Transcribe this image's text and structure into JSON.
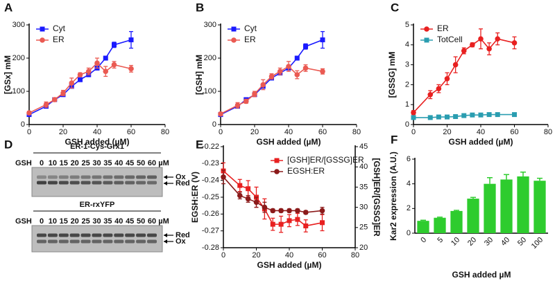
{
  "chart_data": [
    {
      "type": "line",
      "panel": "A",
      "x_label": "GSH added (µM)",
      "y_label": "[GSx] mM",
      "x": [
        0,
        10,
        15,
        20,
        25,
        30,
        35,
        40,
        45,
        50,
        60
      ],
      "xlim": [
        0,
        80
      ],
      "xticks": [
        0,
        20,
        40,
        60,
        80
      ],
      "ylim": [
        0,
        300
      ],
      "yticks": [
        0,
        100,
        200,
        300
      ],
      "legend": "upper left",
      "series": [
        {
          "name": "Cyt",
          "color": "#1a1aff",
          "marker": "square",
          "values": [
            30,
            55,
            75,
            90,
            115,
            135,
            150,
            170,
            200,
            240,
            255
          ],
          "errors": [
            3,
            4,
            3,
            4,
            5,
            5,
            5,
            5,
            6,
            8,
            25
          ]
        },
        {
          "name": "ER",
          "color": "#ea5a52",
          "marker": "circle",
          "values": [
            35,
            60,
            75,
            95,
            125,
            150,
            160,
            185,
            160,
            180,
            168
          ],
          "errors": [
            5,
            8,
            6,
            8,
            15,
            6,
            10,
            15,
            15,
            10,
            10
          ]
        }
      ]
    },
    {
      "type": "line",
      "panel": "B",
      "x_label": "GSH added (µM)",
      "y_label": "[GSH] mM",
      "x": [
        0,
        10,
        15,
        20,
        25,
        30,
        35,
        40,
        45,
        50,
        60
      ],
      "xlim": [
        0,
        80
      ],
      "xticks": [
        0,
        20,
        40,
        60,
        80
      ],
      "ylim": [
        0,
        300
      ],
      "yticks": [
        0,
        100,
        200,
        300
      ],
      "legend": "upper left",
      "series": [
        {
          "name": "Cyt",
          "color": "#1a1aff",
          "marker": "square",
          "values": [
            30,
            55,
            75,
            90,
            115,
            140,
            155,
            170,
            200,
            235,
            255
          ],
          "errors": [
            3,
            4,
            3,
            4,
            5,
            5,
            5,
            5,
            6,
            8,
            25
          ]
        },
        {
          "name": "ER",
          "color": "#ea5a52",
          "marker": "circle",
          "values": [
            32,
            58,
            70,
            92,
            120,
            145,
            160,
            175,
            150,
            170,
            160
          ],
          "errors": [
            5,
            8,
            6,
            8,
            15,
            8,
            10,
            15,
            12,
            10,
            8
          ]
        }
      ]
    },
    {
      "type": "line",
      "panel": "C",
      "x_label": "GSH added (µM)",
      "y_label": "[GSSG] mM",
      "x": [
        0,
        10,
        15,
        20,
        25,
        30,
        35,
        40,
        45,
        50,
        60
      ],
      "xlim": [
        0,
        80
      ],
      "xticks": [
        0,
        20,
        40,
        60,
        80
      ],
      "ylim": [
        0,
        5
      ],
      "yticks": [
        0,
        1,
        2,
        3,
        4,
        5
      ],
      "legend": "upper left",
      "series": [
        {
          "name": "ER",
          "color": "#e82020",
          "marker": "circle",
          "values": [
            0.6,
            1.5,
            1.8,
            2.3,
            3.0,
            3.7,
            4.0,
            4.3,
            3.8,
            4.3,
            4.1
          ],
          "errors": [
            0.1,
            0.2,
            0.2,
            0.3,
            0.4,
            0.15,
            0.1,
            0.5,
            0.3,
            0.3,
            0.3
          ]
        },
        {
          "name": "TotCell",
          "color": "#2a9db0",
          "marker": "square",
          "values": [
            0.35,
            0.35,
            0.38,
            0.38,
            0.4,
            0.45,
            0.48,
            0.48,
            0.5,
            0.5,
            0.5
          ],
          "errors": [
            0.03,
            0.03,
            0.03,
            0.03,
            0.03,
            0.03,
            0.03,
            0.03,
            0.03,
            0.03,
            0.03
          ]
        }
      ]
    },
    {
      "type": "line",
      "panel": "E",
      "x_label": "GSH added (µM)",
      "y_label": "EGSH:ER (V)",
      "y2_label": "[GSH]ER/[GSSG]ER",
      "x": [
        0,
        10,
        15,
        20,
        25,
        30,
        35,
        40,
        45,
        50,
        60
      ],
      "xlim": [
        0,
        80
      ],
      "xticks": [
        0,
        20,
        40,
        60,
        80
      ],
      "ylim": [
        -0.28,
        -0.22
      ],
      "yticks": [
        -0.28,
        -0.27,
        -0.26,
        -0.25,
        -0.24,
        -0.23,
        -0.22
      ],
      "y2lim": [
        20,
        45
      ],
      "y2ticks": [
        20,
        25,
        30,
        35,
        40,
        45
      ],
      "legend": "upper right",
      "series": [
        {
          "name": "[GSH]ER/[GSSG]ER",
          "axis": "y2",
          "color": "#e82020",
          "marker": "square",
          "values": [
            39,
            35.4,
            34.6,
            32.5,
            29.6,
            25.8,
            25.8,
            26.7,
            27,
            25.4,
            26.2
          ],
          "errors": [
            2,
            1.5,
            2,
            2.5,
            2.5,
            1.5,
            2,
            1.5,
            1.5,
            1.5,
            2
          ]
        },
        {
          "name": "EGSH:ER",
          "color": "#8b1a1a",
          "marker": "circle",
          "values": [
            -0.238,
            -0.249,
            -0.251,
            -0.253,
            -0.256,
            -0.258,
            -0.258,
            -0.258,
            -0.258,
            -0.259,
            -0.258
          ],
          "errors": [
            0.004,
            0.002,
            0.002,
            0.003,
            0.003,
            0.001,
            0.001,
            0.001,
            0.001,
            0.001,
            0.002
          ]
        }
      ]
    },
    {
      "type": "bar",
      "panel": "F",
      "x_label": "GSH added µM",
      "y_label": "Kar2 expression (A.U.)",
      "categories": [
        "0",
        "5",
        "10",
        "20",
        "30",
        "40",
        "50",
        "100"
      ],
      "color": "#2ecc2e",
      "values": [
        1.0,
        1.25,
        1.8,
        2.8,
        4.0,
        4.35,
        4.6,
        4.25
      ],
      "errors": [
        0.05,
        0.05,
        0.05,
        0.1,
        0.5,
        0.4,
        0.35,
        0.2
      ],
      "ylim": [
        0,
        6
      ],
      "yticks": [
        0,
        2,
        4,
        6
      ]
    }
  ],
  "gels": {
    "panel": "D",
    "blots": [
      {
        "title": "ER-1-Cys-Grx1",
        "row_label": "GSH",
        "lanes": [
          "0",
          "10",
          "15",
          "20",
          "25",
          "30",
          "35",
          "40",
          "45",
          "50",
          "60"
        ],
        "unit": "µM",
        "bands": [
          "Ox",
          "Red"
        ]
      },
      {
        "title": "ER-rxYFP",
        "row_label": "GSH",
        "lanes": [
          "0",
          "10",
          "15",
          "20",
          "25",
          "30",
          "35",
          "40",
          "45",
          "50",
          "60"
        ],
        "unit": "µM",
        "bands": [
          "Red",
          "Ox"
        ]
      }
    ]
  }
}
